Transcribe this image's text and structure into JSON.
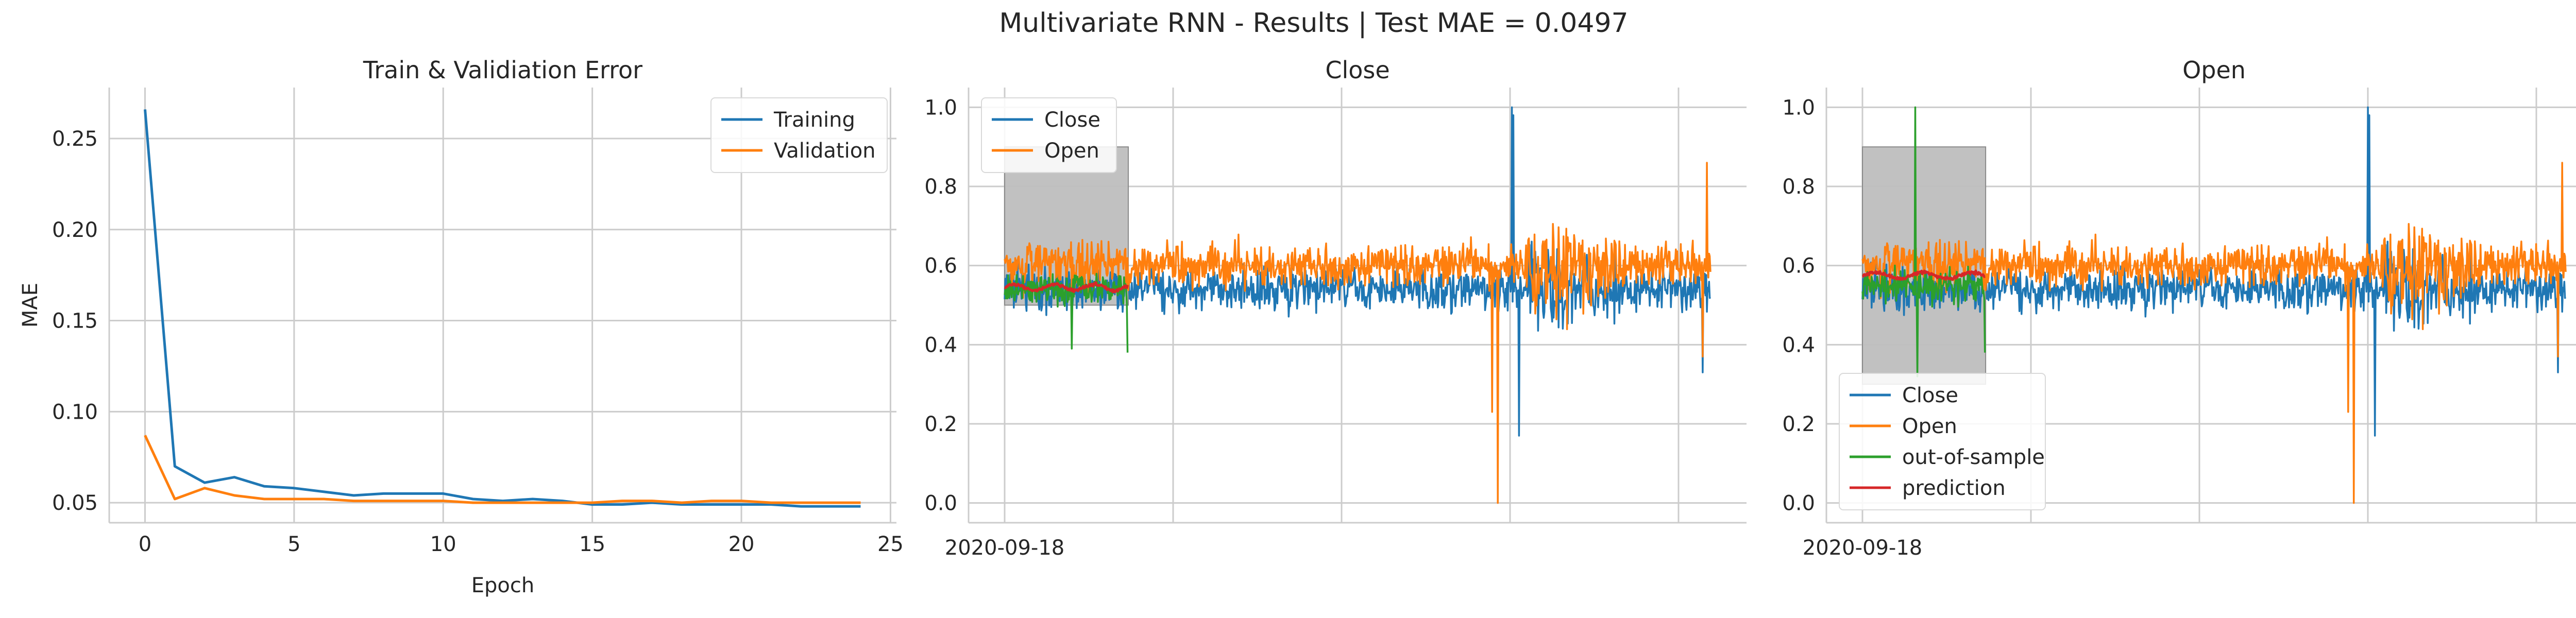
{
  "figure": {
    "suptitle": "Multivariate RNN - Results | Test MAE = 0.0497"
  },
  "colors": {
    "blue": "#1f77b4",
    "orange": "#ff7f0e",
    "green": "#2ca02c",
    "red": "#d62728",
    "grid": "#cccccc",
    "shade": "#bebebe"
  },
  "chart_data": [
    {
      "type": "line",
      "title": "Train & Validiation Error",
      "xlabel": "Epoch",
      "ylabel": "MAE",
      "xlim": [
        -1.2,
        25.2
      ],
      "ylim": [
        0.039,
        0.278
      ],
      "xticks": [
        0,
        5,
        10,
        15,
        20,
        25
      ],
      "yticks": [
        0.05,
        0.1,
        0.15,
        0.2,
        0.25
      ],
      "ytick_labels": [
        "0.05",
        "0.10",
        "0.15",
        "0.20",
        "0.25"
      ],
      "grid": true,
      "legend": "upper right",
      "x": [
        0,
        1,
        2,
        3,
        4,
        5,
        6,
        7,
        8,
        9,
        10,
        11,
        12,
        13,
        14,
        15,
        16,
        17,
        18,
        19,
        20,
        21,
        22,
        23,
        24
      ],
      "series": [
        {
          "name": "Training",
          "color": "blue",
          "values": [
            0.266,
            0.07,
            0.061,
            0.064,
            0.059,
            0.058,
            0.056,
            0.054,
            0.055,
            0.055,
            0.055,
            0.052,
            0.051,
            0.052,
            0.051,
            0.049,
            0.049,
            0.05,
            0.049,
            0.049,
            0.049,
            0.049,
            0.048,
            0.048,
            0.048
          ]
        },
        {
          "name": "Validation",
          "color": "orange",
          "values": [
            0.087,
            0.052,
            0.058,
            0.054,
            0.052,
            0.052,
            0.052,
            0.051,
            0.051,
            0.051,
            0.051,
            0.05,
            0.05,
            0.05,
            0.05,
            0.05,
            0.051,
            0.051,
            0.05,
            0.051,
            0.051,
            0.05,
            0.05,
            0.05,
            0.05
          ]
        }
      ]
    },
    {
      "type": "line",
      "title": "Close",
      "xlabel": "",
      "ylabel": "",
      "x_type": "date",
      "ylim": [
        -0.05,
        1.05
      ],
      "yticks": [
        0.0,
        0.2,
        0.4,
        0.6,
        0.8,
        1.0
      ],
      "ytick_labels": [
        "0.0",
        "0.2",
        "0.4",
        "0.6",
        "0.8",
        "1.0"
      ],
      "xtick_labels": [
        "2020-09-18",
        "",
        "",
        "",
        ""
      ],
      "grid": true,
      "legend": "upper left",
      "shaded_band": {
        "ymin": 0.5,
        "ymax": 0.9
      },
      "series": [
        {
          "name": "Close",
          "color": "blue"
        },
        {
          "name": "Open",
          "color": "orange"
        },
        {
          "name": "",
          "color": "green"
        },
        {
          "name": "",
          "color": "red"
        }
      ]
    },
    {
      "type": "line",
      "title": "Open",
      "xlabel": "",
      "ylabel": "",
      "x_type": "date",
      "ylim": [
        -0.05,
        1.05
      ],
      "yticks": [
        0.0,
        0.2,
        0.4,
        0.6,
        0.8,
        1.0
      ],
      "ytick_labels": [
        "0.0",
        "0.2",
        "0.4",
        "0.6",
        "0.8",
        "1.0"
      ],
      "xtick_labels": [
        "2020-09-18",
        "",
        "",
        "",
        ""
      ],
      "grid": true,
      "legend": "lower left",
      "shaded_band": {
        "ymin": 0.3,
        "ymax": 0.9
      },
      "series": [
        {
          "name": "Close",
          "color": "blue"
        },
        {
          "name": "Open",
          "color": "orange"
        },
        {
          "name": "out-of-sample",
          "color": "green"
        },
        {
          "name": "prediction",
          "color": "red"
        }
      ]
    }
  ]
}
